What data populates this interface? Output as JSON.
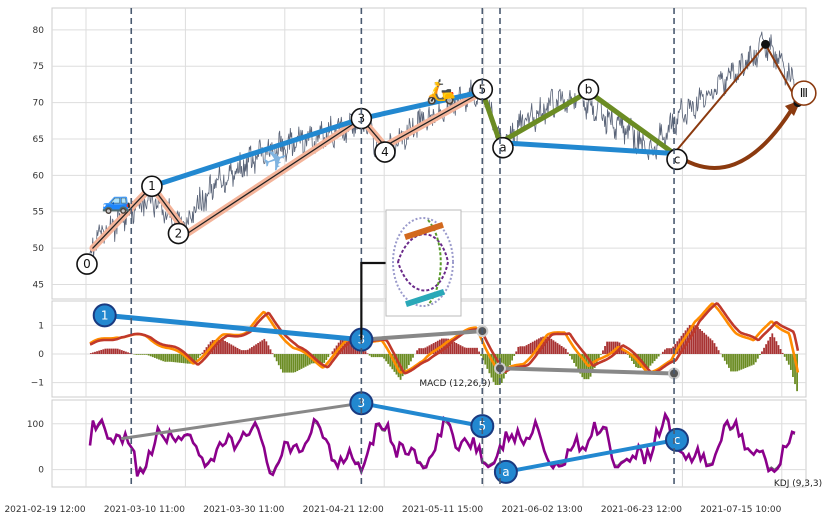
{
  "chart_data": {
    "type": "line",
    "x_ticks": [
      "2021-02-19 12:00",
      "2021-03-10 11:00",
      "2021-03-30 11:00",
      "2021-04-21 12:00",
      "2021-05-11 15:00",
      "2021-06-02 13:00",
      "2021-06-23 12:00",
      "2021-07-15 10:00"
    ],
    "panels": [
      {
        "name": "price",
        "yticks": [
          45,
          50,
          55,
          60,
          65,
          70,
          75,
          80
        ],
        "ylim": [
          43,
          83
        ],
        "series_color": "#5a6478",
        "anchors": [
          [
            0.05,
            50
          ],
          [
            0.7,
            55
          ],
          [
            1.1,
            57
          ],
          [
            1.6,
            53
          ],
          [
            2.2,
            59
          ],
          [
            3.0,
            63
          ],
          [
            3.8,
            65
          ],
          [
            4.4,
            66.5
          ],
          [
            4.7,
            68
          ],
          [
            5.0,
            62.5
          ],
          [
            5.6,
            67
          ],
          [
            6.2,
            70
          ],
          [
            6.75,
            71.5
          ],
          [
            7.0,
            64
          ],
          [
            7.4,
            67
          ],
          [
            7.9,
            70
          ],
          [
            8.3,
            71
          ],
          [
            8.8,
            68
          ],
          [
            9.2,
            66
          ],
          [
            9.55,
            63
          ],
          [
            9.9,
            67
          ],
          [
            10.4,
            70.5
          ],
          [
            11.0,
            74
          ],
          [
            11.5,
            78
          ],
          [
            11.85,
            74.5
          ],
          [
            12.05,
            71
          ]
        ],
        "waves": [
          {
            "name": "impulse",
            "color": "#f4b49a",
            "width": 7,
            "points": [
              [
                0.1,
                50
              ],
              [
                1.1,
                58.5
              ],
              [
                1.7,
                52
              ],
              [
                4.65,
                67.8
              ],
              [
                5.05,
                64
              ],
              [
                6.7,
                71.5
              ]
            ]
          },
          {
            "name": "impulse-inner",
            "color": "#222222",
            "width": 1.3,
            "points": [
              [
                0.1,
                50
              ],
              [
                1.1,
                58.5
              ],
              [
                1.7,
                52
              ],
              [
                4.65,
                67.8
              ],
              [
                5.05,
                64
              ],
              [
                6.7,
                71.5
              ]
            ]
          },
          {
            "name": "primary",
            "color": "#2288d0",
            "width": 5,
            "points": [
              [
                1.1,
                58.5
              ],
              [
                4.65,
                67.8
              ],
              [
                6.7,
                71.5
              ]
            ]
          },
          {
            "name": "abc-corrective",
            "color": "#6b8c23",
            "width": 5,
            "points": [
              [
                6.7,
                71.5
              ],
              [
                7.0,
                64.5
              ],
              [
                8.5,
                71.5
              ],
              [
                9.95,
                63
              ]
            ]
          },
          {
            "name": "a-to-c",
            "color": "#2288d0",
            "width": 5,
            "points": [
              [
                7.0,
                64.5
              ],
              [
                9.95,
                63
              ]
            ]
          },
          {
            "name": "projection",
            "color": "#8b3a0f",
            "width": 2,
            "points": [
              [
                9.95,
                63
              ],
              [
                11.5,
                78
              ],
              [
                12.05,
                70
              ]
            ]
          }
        ],
        "wave_labels": [
          {
            "text": "0",
            "x": 0.0,
            "y": 47.8
          },
          {
            "text": "1",
            "x": 1.1,
            "y": 58.5
          },
          {
            "text": "2",
            "x": 1.55,
            "y": 52
          },
          {
            "text": "3",
            "x": 4.65,
            "y": 67.8
          },
          {
            "text": "4",
            "x": 5.05,
            "y": 63.2
          },
          {
            "text": "5",
            "x": 6.7,
            "y": 71.8
          },
          {
            "text": "a",
            "x": 7.05,
            "y": 63.8
          },
          {
            "text": "b",
            "x": 8.5,
            "y": 71.8
          },
          {
            "text": "c",
            "x": 10.0,
            "y": 62.2
          },
          {
            "text": "Ⅲ",
            "x": 12.15,
            "y": 71.3
          }
        ],
        "icons": [
          {
            "name": "car-icon",
            "glyph": "🚙",
            "x": 0.5,
            "y": 56.5
          },
          {
            "name": "airplane-icon",
            "glyph": "✈",
            "x": 3.2,
            "y": 62
          },
          {
            "name": "scooter-icon",
            "glyph": "🛵",
            "x": 6.0,
            "y": 71.5
          }
        ]
      },
      {
        "name": "macd",
        "label": "MACD (12,26,9)",
        "yticks": [
          -1,
          0,
          1
        ],
        "ylim": [
          -1.5,
          1.85
        ],
        "line_colors": [
          "#ff8c00",
          "#c0392b"
        ],
        "anchors": [
          [
            0.0,
            0.3
          ],
          [
            0.5,
            0.65
          ],
          [
            1.0,
            0.6
          ],
          [
            1.4,
            0.2
          ],
          [
            1.8,
            -0.3
          ],
          [
            2.3,
            0.6
          ],
          [
            2.7,
            0.8
          ],
          [
            3.0,
            1.4
          ],
          [
            3.5,
            0.2
          ],
          [
            4.0,
            -0.4
          ],
          [
            4.5,
            0.6
          ],
          [
            5.0,
            0.4
          ],
          [
            5.3,
            -0.6
          ],
          [
            5.7,
            -0.3
          ],
          [
            6.1,
            0.5
          ],
          [
            6.6,
            0.9
          ],
          [
            7.0,
            -0.7
          ],
          [
            7.4,
            -0.3
          ],
          [
            7.8,
            0.6
          ],
          [
            8.1,
            0.8
          ],
          [
            8.5,
            -0.5
          ],
          [
            9.0,
            0.3
          ],
          [
            9.5,
            -0.6
          ],
          [
            9.9,
            -0.3
          ],
          [
            10.3,
            1.2
          ],
          [
            10.6,
            1.7
          ],
          [
            11.0,
            0.8
          ],
          [
            11.3,
            0.4
          ],
          [
            11.6,
            1.2
          ],
          [
            11.9,
            0.7
          ],
          [
            12.1,
            -1.2
          ]
        ],
        "segments": [
          {
            "color": "#2288d0",
            "width": 5,
            "points": [
              [
                0.3,
                1.35
              ],
              [
                4.65,
                0.5
              ]
            ]
          },
          {
            "color": "#888888",
            "width": 4,
            "points": [
              [
                4.65,
                0.5
              ],
              [
                6.7,
                0.8
              ]
            ]
          },
          {
            "color": "#888888",
            "width": 4,
            "points": [
              [
                7.0,
                -0.5
              ],
              [
                9.95,
                -0.68
              ]
            ]
          }
        ],
        "markers": [
          {
            "text": "1",
            "x": 0.3,
            "y": 1.35
          },
          {
            "text": "3",
            "x": 4.65,
            "y": 0.5
          }
        ],
        "dots": [
          [
            6.7,
            0.8
          ],
          [
            7.0,
            -0.5
          ],
          [
            9.95,
            -0.68
          ]
        ]
      },
      {
        "name": "kdj",
        "label": "KDJ (9,3,3)",
        "yticks": [
          0,
          100
        ],
        "ylim": [
          -38,
          152
        ],
        "line_colors": [
          "#8b008b",
          "#666666"
        ],
        "segments": [
          {
            "color": "#888888",
            "width": 3,
            "points": [
              [
                0.6,
                68
              ],
              [
                4.65,
                145
              ]
            ]
          },
          {
            "color": "#2288d0",
            "width": 4,
            "points": [
              [
                4.65,
                145
              ],
              [
                6.7,
                95
              ]
            ]
          },
          {
            "color": "#2288d0",
            "width": 4,
            "points": [
              [
                7.1,
                -5
              ],
              [
                10.0,
                65
              ]
            ]
          }
        ],
        "markers": [
          {
            "text": "3",
            "x": 4.65,
            "y": 145
          },
          {
            "text": "5",
            "x": 6.7,
            "y": 95
          },
          {
            "text": "a",
            "x": 7.1,
            "y": -5
          },
          {
            "text": "c",
            "x": 10.0,
            "y": 65
          }
        ]
      }
    ],
    "vlines": [
      0.75,
      4.65,
      6.7,
      7.0,
      9.95
    ]
  }
}
